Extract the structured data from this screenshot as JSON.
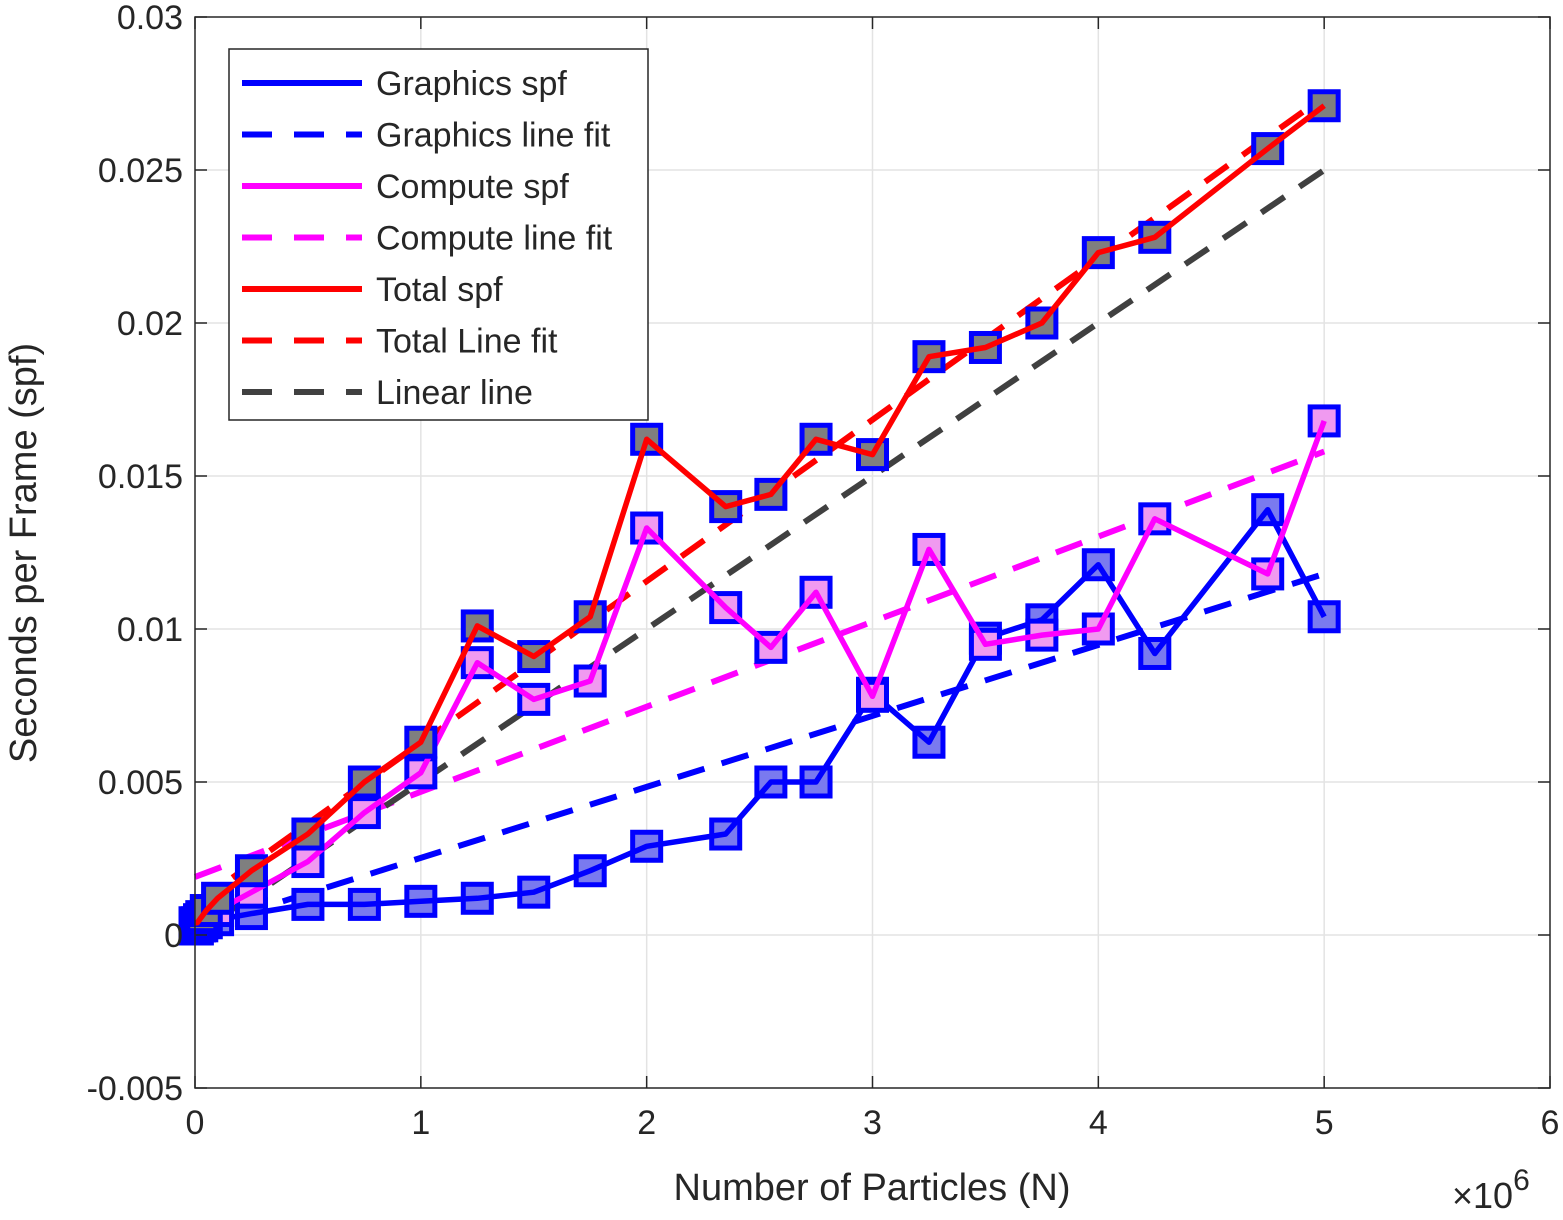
{
  "chart_data": {
    "type": "line",
    "xlabel": "Number of Particles (N)",
    "ylabel": "Seconds per Frame (spf)",
    "x_multiplier_label": "×10",
    "x_multiplier_exponent": "6",
    "xlim": [
      0,
      6
    ],
    "ylim": [
      -0.005,
      0.03
    ],
    "xticks": [
      0,
      1,
      2,
      3,
      4,
      5,
      6
    ],
    "yticks": [
      -0.005,
      0,
      0.005,
      0.01,
      0.015,
      0.02,
      0.025,
      0.03
    ],
    "xtick_labels": [
      "0",
      "1",
      "2",
      "3",
      "4",
      "5",
      "6"
    ],
    "ytick_labels": [
      "-0.005",
      "0",
      "0.005",
      "0.01",
      "0.015",
      "0.02",
      "0.025",
      "0.03"
    ],
    "grid": true,
    "legend_position": "top-left",
    "x": [
      0,
      0.01,
      0.02,
      0.03,
      0.05,
      0.1,
      0.25,
      0.5,
      0.75,
      1.0,
      1.25,
      1.5,
      1.75,
      2.0,
      2.35,
      2.55,
      2.75,
      3.0,
      3.25,
      3.5,
      3.75,
      4.0,
      4.25,
      4.75,
      5.0
    ],
    "series": [
      {
        "name": "Graphics spf",
        "kind": "data",
        "color": "#0000ff",
        "dash": "solid",
        "marker_fill": "#7a7aef",
        "values": [
          0.0002,
          0.0002,
          0.0003,
          0.0003,
          0.0004,
          0.0005,
          0.0007,
          0.001,
          0.001,
          0.0011,
          0.0012,
          0.0014,
          0.0021,
          0.0029,
          0.0033,
          0.005,
          0.005,
          0.0079,
          0.0063,
          0.0097,
          0.0103,
          0.0121,
          0.0092,
          0.0139,
          0.0104
        ]
      },
      {
        "name": "Graphics line fit",
        "kind": "fit",
        "color": "#0000ff",
        "dash": "dashed",
        "x": [
          0,
          5.0
        ],
        "values": [
          0.0002,
          0.0118
        ]
      },
      {
        "name": "Compute spf",
        "kind": "data",
        "color": "#ff00ff",
        "dash": "solid",
        "marker_fill": "#f09af0",
        "values": [
          0.0002,
          0.0002,
          0.0003,
          0.0004,
          0.0005,
          0.0008,
          0.0014,
          0.0024,
          0.004,
          0.0053,
          0.0089,
          0.0077,
          0.0083,
          0.0133,
          0.0107,
          0.0094,
          0.0112,
          0.0078,
          0.0126,
          0.0095,
          0.0098,
          0.01,
          0.0136,
          0.0118,
          0.0168
        ]
      },
      {
        "name": "Compute line fit",
        "kind": "fit",
        "color": "#ff00ff",
        "dash": "dashed",
        "x": [
          0,
          5.0
        ],
        "values": [
          0.0019,
          0.0158
        ]
      },
      {
        "name": "Total spf",
        "kind": "data",
        "color": "#ff0000",
        "dash": "solid",
        "marker_fill": "#7f7f7f",
        "values": [
          0.0004,
          0.0004,
          0.0005,
          0.0006,
          0.0008,
          0.0012,
          0.0021,
          0.0033,
          0.005,
          0.0063,
          0.0101,
          0.0091,
          0.0104,
          0.0162,
          0.014,
          0.0144,
          0.0162,
          0.0157,
          0.0189,
          0.0192,
          0.02,
          0.0223,
          0.0228,
          0.0257,
          0.0271
        ]
      },
      {
        "name": "Total Line fit",
        "kind": "fit",
        "color": "#ff0000",
        "dash": "dashed",
        "x": [
          0,
          5.0
        ],
        "values": [
          0.001,
          0.0274
        ]
      },
      {
        "name": "Linear line",
        "kind": "fit",
        "color": "#404040",
        "dash": "dashed",
        "x": [
          0,
          5.0
        ],
        "values": [
          0,
          0.025
        ]
      }
    ],
    "marker_edge_color": "#0000ff"
  }
}
